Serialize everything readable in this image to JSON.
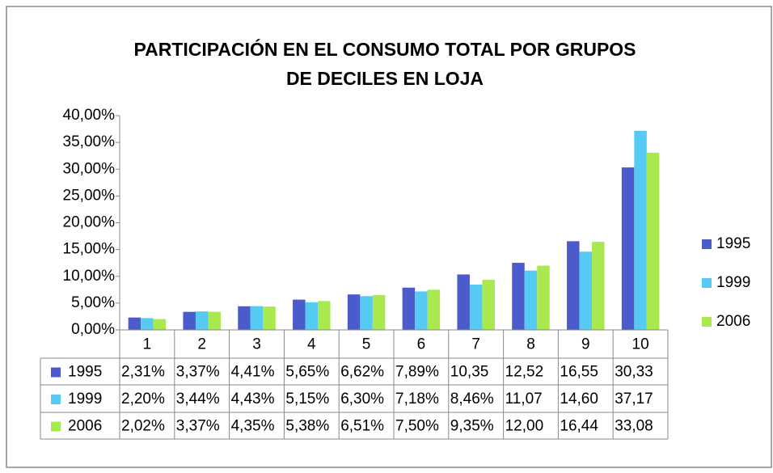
{
  "chart_data": {
    "type": "bar",
    "title": "PARTICIPACIÓN EN EL CONSUMO TOTAL POR GRUPOS DE DECILES EN LOJA",
    "categories": [
      "1",
      "2",
      "3",
      "4",
      "5",
      "6",
      "7",
      "8",
      "9",
      "10"
    ],
    "series": [
      {
        "name": "1995",
        "color": "#4b5bcc",
        "values": [
          2.31,
          3.37,
          4.41,
          5.65,
          6.62,
          7.89,
          10.35,
          12.52,
          16.55,
          30.33
        ],
        "value_labels": [
          "2,31%",
          "3,37%",
          "4,41%",
          "5,65%",
          "6,62%",
          "7,89%",
          "10,35",
          "12,52",
          "16,55",
          "30,33"
        ]
      },
      {
        "name": "1999",
        "color": "#55cbf3",
        "values": [
          2.2,
          3.44,
          4.43,
          5.15,
          6.3,
          7.18,
          8.46,
          11.07,
          14.6,
          37.17
        ],
        "value_labels": [
          "2,20%",
          "3,44%",
          "4,43%",
          "5,15%",
          "6,30%",
          "7,18%",
          "8,46%",
          "11,07",
          "14,60",
          "37,17"
        ]
      },
      {
        "name": "2006",
        "color": "#a9e84f",
        "values": [
          2.02,
          3.37,
          4.35,
          5.38,
          6.51,
          7.5,
          9.35,
          12.0,
          16.44,
          33.08
        ],
        "value_labels": [
          "2,02%",
          "3,37%",
          "4,35%",
          "5,38%",
          "6,51%",
          "7,50%",
          "9,35%",
          "12,00",
          "16,44",
          "33,08"
        ]
      }
    ],
    "ylim": [
      0,
      40
    ],
    "yticks": [
      {
        "value": 0,
        "label": "0,00%"
      },
      {
        "value": 5,
        "label": "5,00%"
      },
      {
        "value": 10,
        "label": "10,00%"
      },
      {
        "value": 15,
        "label": "15,00%"
      },
      {
        "value": 20,
        "label": "20,00%"
      },
      {
        "value": 25,
        "label": "25,00%"
      },
      {
        "value": 30,
        "label": "30,00%"
      },
      {
        "value": 35,
        "label": "35,00%"
      },
      {
        "value": 40,
        "label": "40,00%"
      }
    ],
    "legend": "right",
    "data_table": true
  }
}
